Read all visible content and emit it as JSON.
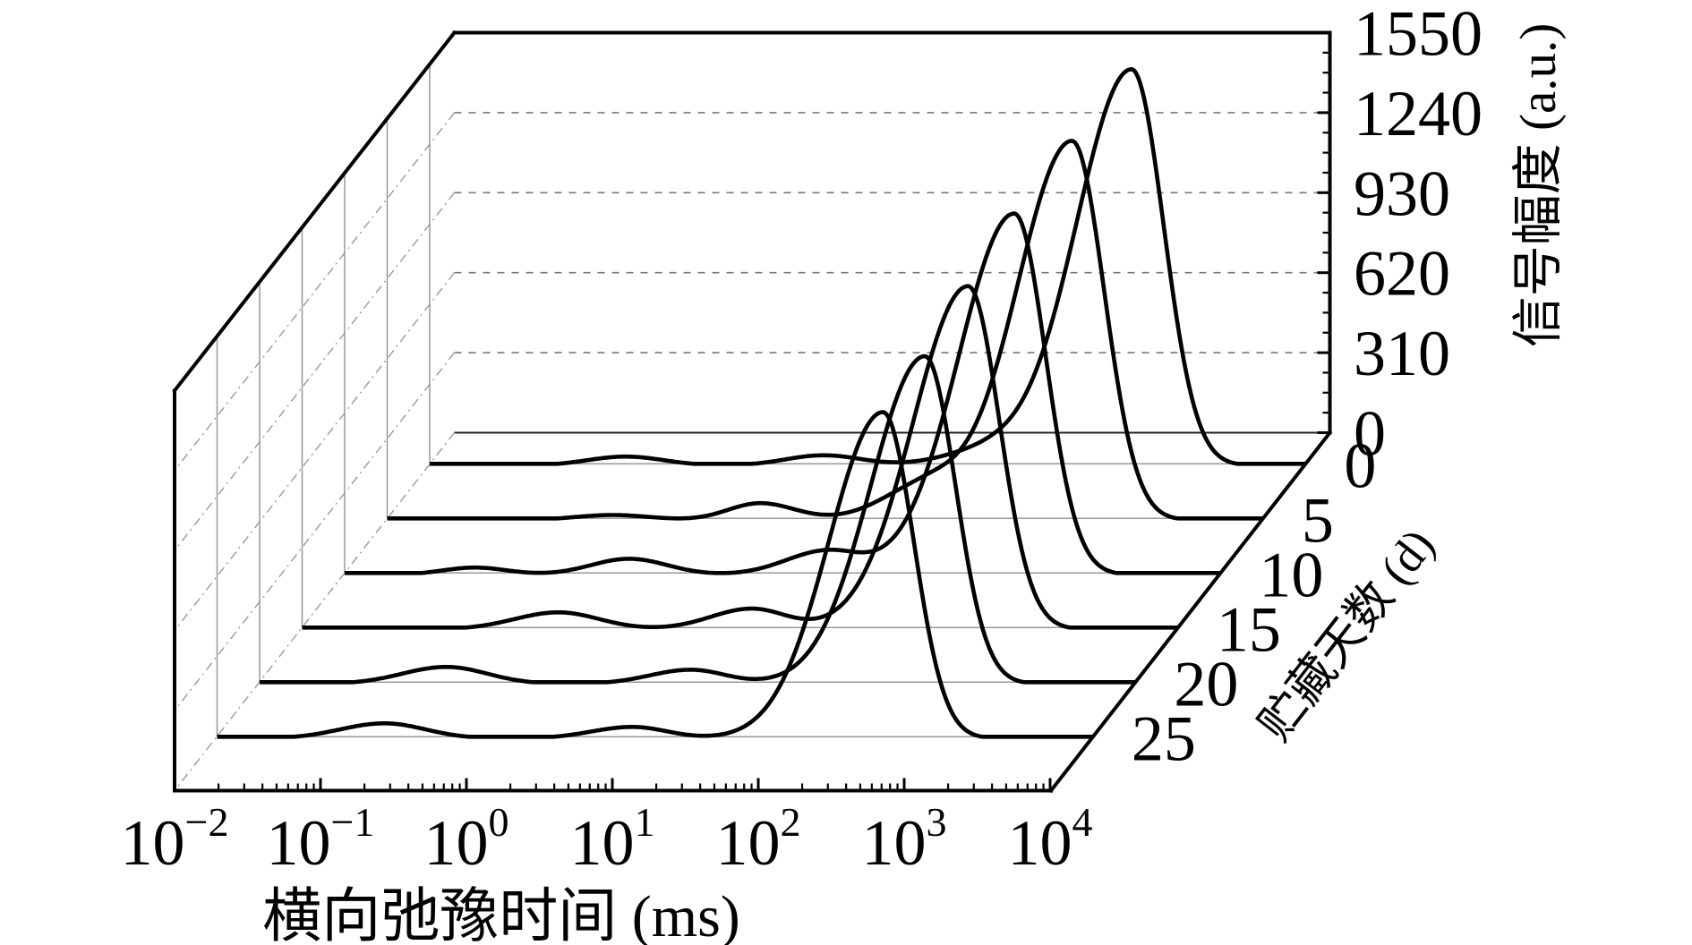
{
  "figure": {
    "kind": "3D waterfall NMR T2 relaxation spectra",
    "background_color": "#ffffff",
    "curve_color": "#000000",
    "grid_color": "#787878",
    "guide_color": "#999999"
  },
  "chart_data": {
    "type": "line",
    "projection": "3d-waterfall",
    "title": "",
    "xlabel": "横向弛豫时间 (ms)",
    "ylabel": "信号幅度 (a.u.)",
    "zlabel": "贮藏天数 (d)",
    "x_scale": "log",
    "x_tick_exponents": [
      -2,
      -1,
      0,
      1,
      2,
      3,
      4
    ],
    "x_tick_base": "10",
    "xlim_ms": [
      0.01,
      10000
    ],
    "y_ticks": [
      0,
      310,
      620,
      930,
      1240,
      1550
    ],
    "ylim": [
      0,
      1550
    ],
    "y_minor_step": 77.5,
    "grid": "dashed horizontal lines at major y ticks on back wall",
    "z_categories_days": [
      0,
      5,
      10,
      15,
      20,
      25
    ],
    "series": [
      {
        "storage_day": 0,
        "peaks": [
          {
            "t2_ms": 0.22,
            "amp_au": 35,
            "sl_dec": 0.26,
            "sr_dec": 0.26
          },
          {
            "t2_ms": 5,
            "amp_au": 40,
            "sl_dec": 0.26,
            "sr_dec": 0.26
          },
          {
            "t2_ms": 66,
            "amp_au": 55,
            "sl_dec": 0.3,
            "sr_dec": 0.24
          },
          {
            "t2_ms": 645,
            "amp_au": 1536,
            "sl_dec": 0.38,
            "sr_dec": 0.22
          }
        ]
      },
      {
        "storage_day": 5,
        "peaks": [
          {
            "t2_ms": 0.35,
            "amp_au": 20,
            "sl_dec": 0.26,
            "sr_dec": 0.26
          },
          {
            "t2_ms": 3.6,
            "amp_au": 66,
            "sl_dec": 0.22,
            "sr_dec": 0.24
          },
          {
            "t2_ms": 49,
            "amp_au": 130,
            "sl_dec": 0.3,
            "sr_dec": 0.24
          },
          {
            "t2_ms": 493,
            "amp_au": 1470,
            "sl_dec": 0.38,
            "sr_dec": 0.22
          }
        ]
      },
      {
        "storage_day": 10,
        "peaks": [
          {
            "t2_ms": 0.078,
            "amp_au": 28,
            "sl_dec": 0.22,
            "sr_dec": 0.22
          },
          {
            "t2_ms": 0.89,
            "amp_au": 62,
            "sl_dec": 0.26,
            "sr_dec": 0.26
          },
          {
            "t2_ms": 20,
            "amp_au": 92,
            "sl_dec": 0.28,
            "sr_dec": 0.24
          },
          {
            "t2_ms": 388,
            "amp_au": 1400,
            "sl_dec": 0.38,
            "sr_dec": 0.215
          }
        ]
      },
      {
        "storage_day": 15,
        "peaks": [
          {
            "t2_ms": 0.57,
            "amp_au": 66,
            "sl_dec": 0.3,
            "sr_dec": 0.28
          },
          {
            "t2_ms": 12,
            "amp_au": 80,
            "sl_dec": 0.28,
            "sr_dec": 0.24
          },
          {
            "t2_ms": 366,
            "amp_au": 1330,
            "sl_dec": 0.375,
            "sr_dec": 0.215
          }
        ]
      },
      {
        "storage_day": 20,
        "peaks": [
          {
            "t2_ms": 0.19,
            "amp_au": 66,
            "sl_dec": 0.3,
            "sr_dec": 0.28
          },
          {
            "t2_ms": 9,
            "amp_au": 55,
            "sl_dec": 0.28,
            "sr_dec": 0.24
          },
          {
            "t2_ms": 362,
            "amp_au": 1270,
            "sl_dec": 0.37,
            "sr_dec": 0.21
          }
        ]
      },
      {
        "storage_day": 25,
        "peaks": [
          {
            "t2_ms": 0.14,
            "amp_au": 59,
            "sl_dec": 0.3,
            "sr_dec": 0.28
          },
          {
            "t2_ms": 7,
            "amp_au": 45,
            "sl_dec": 0.28,
            "sr_dec": 0.24
          },
          {
            "t2_ms": 366,
            "amp_au": 1265,
            "sl_dec": 0.37,
            "sr_dec": 0.21
          }
        ]
      }
    ]
  }
}
